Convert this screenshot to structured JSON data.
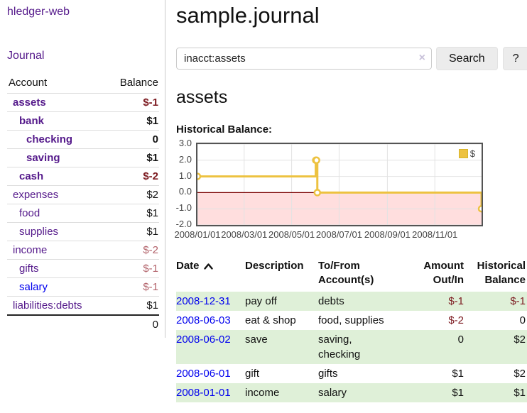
{
  "colors": {
    "link_blue": "#0000ee",
    "link_purple": "#551a8b",
    "negative_dark": "#7c1a20",
    "negative_light": "#b2626a",
    "row_green": "#dff0d8",
    "chart_line": "#edc240",
    "chart_zero_line": "#7a0000",
    "button_bg": "#ececec"
  },
  "sidebar": {
    "app_title": "hledger-web",
    "nav": {
      "journal_label": "Journal"
    },
    "accounts_table": {
      "col_account": "Account",
      "col_balance": "Balance",
      "rows": [
        {
          "name": "assets",
          "indent": 0,
          "bold": true,
          "balance": "$-1",
          "negative": true,
          "link_color": "purple"
        },
        {
          "name": "bank",
          "indent": 1,
          "bold": true,
          "balance": "$1",
          "negative": false,
          "link_color": "purple"
        },
        {
          "name": "checking",
          "indent": 2,
          "bold": true,
          "balance": "0",
          "negative": false,
          "link_color": "purple"
        },
        {
          "name": "saving",
          "indent": 2,
          "bold": true,
          "balance": "$1",
          "negative": false,
          "link_color": "purple"
        },
        {
          "name": "cash",
          "indent": 1,
          "bold": true,
          "balance": "$-2",
          "negative": true,
          "link_color": "purple"
        },
        {
          "name": "expenses",
          "indent": 0,
          "bold": false,
          "balance": "$2",
          "negative": false,
          "link_color": "purple"
        },
        {
          "name": "food",
          "indent": 1,
          "bold": false,
          "balance": "$1",
          "negative": false,
          "link_color": "purple"
        },
        {
          "name": "supplies",
          "indent": 1,
          "bold": false,
          "balance": "$1",
          "negative": false,
          "link_color": "purple"
        },
        {
          "name": "income",
          "indent": 0,
          "bold": false,
          "balance": "$-2",
          "negative": true,
          "link_color": "purple"
        },
        {
          "name": "gifts",
          "indent": 1,
          "bold": false,
          "balance": "$-1",
          "negative": true,
          "link_color": "purple"
        },
        {
          "name": "salary",
          "indent": 1,
          "bold": false,
          "balance": "$-1",
          "negative": true,
          "link_color": "blue"
        },
        {
          "name": "liabilities:debts",
          "indent": 0,
          "bold": false,
          "balance": "$1",
          "negative": false,
          "link_color": "purple"
        }
      ],
      "total": "0"
    }
  },
  "main": {
    "title": "sample.journal",
    "search": {
      "value": "inacct:assets",
      "clear_icon": "×",
      "search_label": "Search",
      "help_label": "?"
    },
    "account_heading": "assets",
    "chart_label": "Historical Balance:",
    "register": {
      "headers": {
        "date": "Date",
        "description": "Description",
        "tofrom_line1": "To/From",
        "tofrom_line2": "Account(s)",
        "amount_line1": "Amount",
        "amount_line2": "Out/In",
        "balance_line1": "Historical",
        "balance_line2": "Balance"
      },
      "sort_icon": "chevron-up",
      "rows": [
        {
          "date": "2008-12-31",
          "description": "pay off",
          "accounts": "debts",
          "amount": "$-1",
          "amount_negative": true,
          "balance": "$-1",
          "balance_negative": true,
          "shaded": true
        },
        {
          "date": "2008-06-03",
          "description": "eat & shop",
          "accounts": "food, supplies",
          "amount": "$-2",
          "amount_negative": true,
          "balance": "0",
          "balance_negative": false,
          "shaded": false
        },
        {
          "date": "2008-06-02",
          "description": "save",
          "accounts": "saving, checking",
          "amount": "0",
          "amount_negative": false,
          "balance": "$2",
          "balance_negative": false,
          "shaded": true
        },
        {
          "date": "2008-06-01",
          "description": "gift",
          "accounts": "gifts",
          "amount": "$1",
          "amount_negative": false,
          "balance": "$2",
          "balance_negative": false,
          "shaded": false
        },
        {
          "date": "2008-01-01",
          "description": "income",
          "accounts": "salary",
          "amount": "$1",
          "amount_negative": false,
          "balance": "$1",
          "balance_negative": false,
          "shaded": true
        }
      ]
    }
  },
  "chart_data": {
    "type": "line",
    "step": true,
    "title": "Historical Balance:",
    "legend": {
      "label": "$",
      "position": "top-right"
    },
    "grid": true,
    "ylim": [
      -2,
      3
    ],
    "x_max_day": 365,
    "series": [
      {
        "name": "$",
        "color": "#edc240",
        "points": [
          {
            "date": "2008-01-01",
            "day": 0,
            "value": 1
          },
          {
            "date": "2008-06-01",
            "day": 152,
            "value": 2
          },
          {
            "date": "2008-06-02",
            "day": 153,
            "value": 2
          },
          {
            "date": "2008-06-03",
            "day": 154,
            "value": 0
          },
          {
            "date": "2008-12-31",
            "day": 365,
            "value": -1
          }
        ]
      }
    ],
    "yticks": [
      {
        "label": "3.0",
        "value": 3
      },
      {
        "label": "2.0",
        "value": 2
      },
      {
        "label": "1.0",
        "value": 1
      },
      {
        "label": "0.0",
        "value": 0
      },
      {
        "label": "-1.0",
        "value": -1
      },
      {
        "label": "-2.0",
        "value": -2
      }
    ],
    "xticks": [
      {
        "label": "2008/01/01",
        "day": 0
      },
      {
        "label": "2008/03/01",
        "day": 60
      },
      {
        "label": "2008/05/01",
        "day": 121
      },
      {
        "label": "2008/07/01",
        "day": 182
      },
      {
        "label": "2008/09/01",
        "day": 244
      },
      {
        "label": "2008/11/01",
        "day": 305
      }
    ],
    "zero_line_color": "#7a0000",
    "negative_region_color": "rgba(255,0,0,0.13)",
    "gridline_color": "#e2e2e2"
  }
}
